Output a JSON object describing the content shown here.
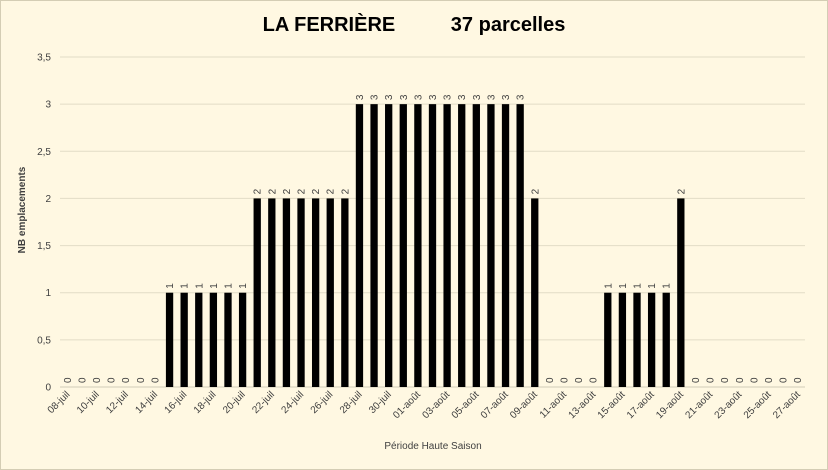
{
  "chart_data": {
    "type": "bar",
    "title": "LA FERRIÈRE          37 parcelles",
    "xlabel": "Période Haute Saison",
    "ylabel": "NB emplacements",
    "ylim": [
      0,
      3.5
    ],
    "y_ticks": [
      "0",
      "0,5",
      "1",
      "1,5",
      "2",
      "2,5",
      "3",
      "3,5"
    ],
    "grid": true,
    "legend": "none",
    "bar_color": "#000000",
    "categories": [
      "08-juil",
      "09-juil",
      "10-juil",
      "11-juil",
      "12-juil",
      "13-juil",
      "14-juil",
      "15-juil",
      "16-juil",
      "17-juil",
      "18-juil",
      "19-juil",
      "20-juil",
      "21-juil",
      "22-juil",
      "23-juil",
      "24-juil",
      "25-juil",
      "26-juil",
      "27-juil",
      "28-juil",
      "29-juil",
      "30-juil",
      "31-juil",
      "01-août",
      "02-août",
      "03-août",
      "04-août",
      "05-août",
      "06-août",
      "07-août",
      "08-août",
      "09-août",
      "10-août",
      "11-août",
      "12-août",
      "13-août",
      "14-août",
      "15-août",
      "16-août",
      "17-août",
      "18-août",
      "19-août",
      "20-août",
      "21-août",
      "22-août",
      "23-août",
      "24-août",
      "25-août",
      "26-août",
      "27-août"
    ],
    "x_tick_labels_shown": [
      "08-juil",
      "10-juil",
      "12-juil",
      "14-juil",
      "16-juil",
      "18-juil",
      "20-juil",
      "22-juil",
      "24-juil",
      "26-juil",
      "28-juil",
      "30-juil",
      "01-août",
      "03-août",
      "05-août",
      "07-août",
      "09-août",
      "11-août",
      "13-août",
      "15-août",
      "17-août",
      "19-août",
      "21-août",
      "23-août",
      "25-août",
      "27-août"
    ],
    "values": [
      0,
      0,
      0,
      0,
      0,
      0,
      0,
      1,
      1,
      1,
      1,
      1,
      1,
      2,
      2,
      2,
      2,
      2,
      2,
      2,
      3,
      3,
      3,
      3,
      3,
      3,
      3,
      3,
      3,
      3,
      3,
      3,
      2,
      0,
      0,
      0,
      0,
      1,
      1,
      1,
      1,
      1,
      2,
      0,
      0,
      0,
      0,
      0,
      0,
      0,
      0
    ]
  }
}
